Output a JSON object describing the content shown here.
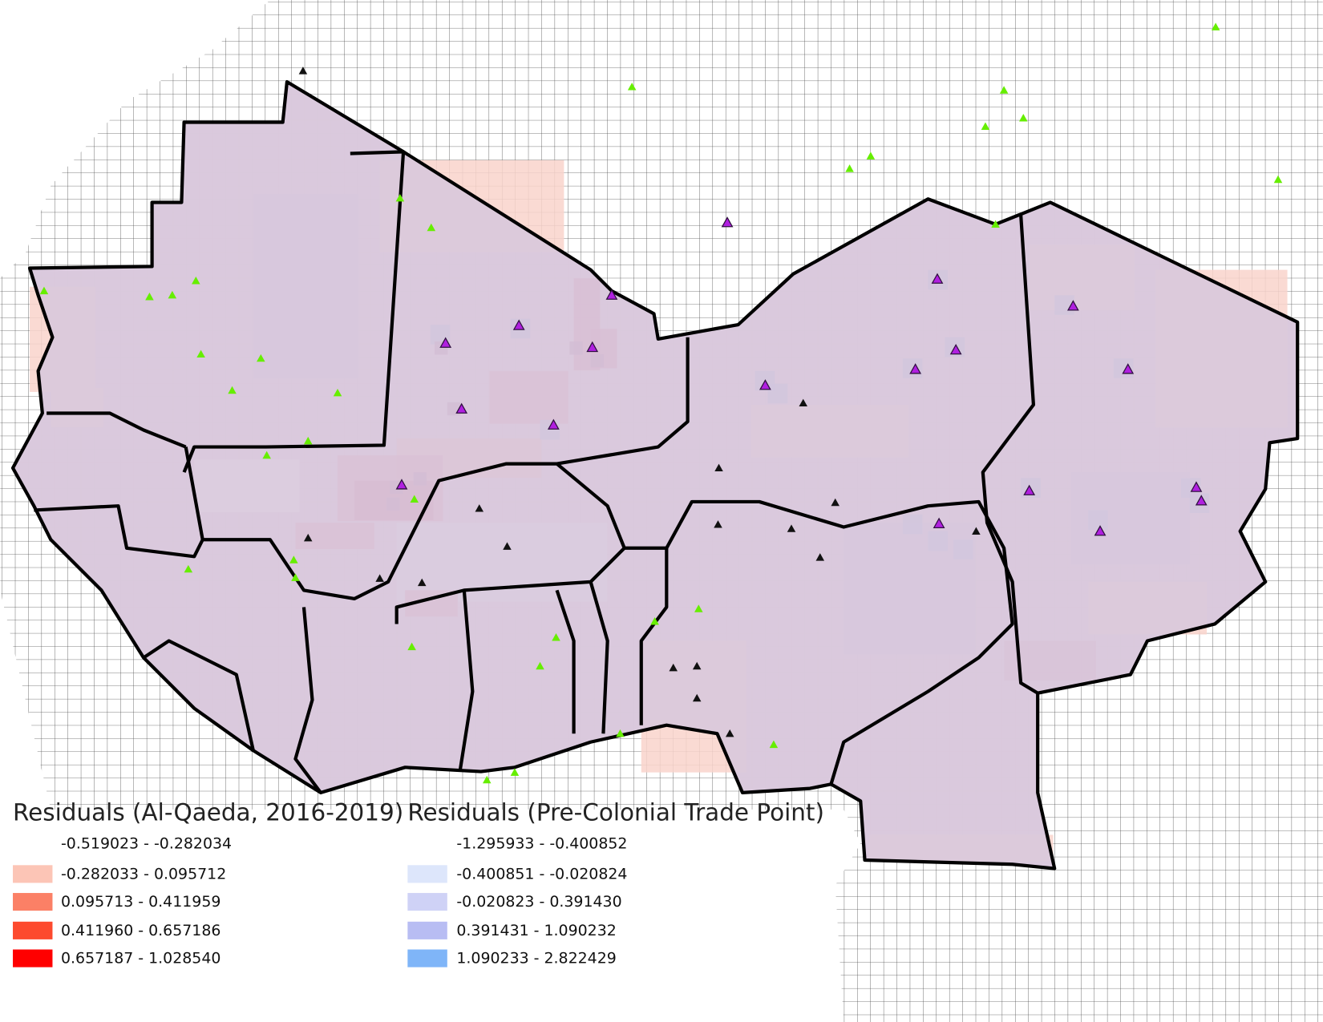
{
  "legend": {
    "left": {
      "title": "Residuals (Al-Qaeda, 2016-2019)",
      "items": [
        {
          "label": "-0.519023 - -0.282034",
          "color": "#ffffff"
        },
        {
          "label": "-0.282033 - 0.095712",
          "color": "#fcc5b6"
        },
        {
          "label": "0.095713 - 0.411959",
          "color": "#fb8066"
        },
        {
          "label": "0.411960 - 0.657186",
          "color": "#fd4a2e"
        },
        {
          "label": "0.657187 - 1.028540",
          "color": "#ff0000"
        }
      ]
    },
    "right": {
      "title": "Residuals (Pre-Colonial Trade Point)",
      "items": [
        {
          "label": "-1.295933 - -0.400852",
          "color": "#ffffff"
        },
        {
          "label": "-0.400851 - -0.020824",
          "color": "#dde6fb"
        },
        {
          "label": "-0.020823 - 0.391430",
          "color": "#cfd2f6"
        },
        {
          "label": "0.391431 - 1.090232",
          "color": "#b8bdf3"
        },
        {
          "label": "1.090233 - 2.822429",
          "color": "#7fb5f8"
        }
      ]
    }
  }
}
